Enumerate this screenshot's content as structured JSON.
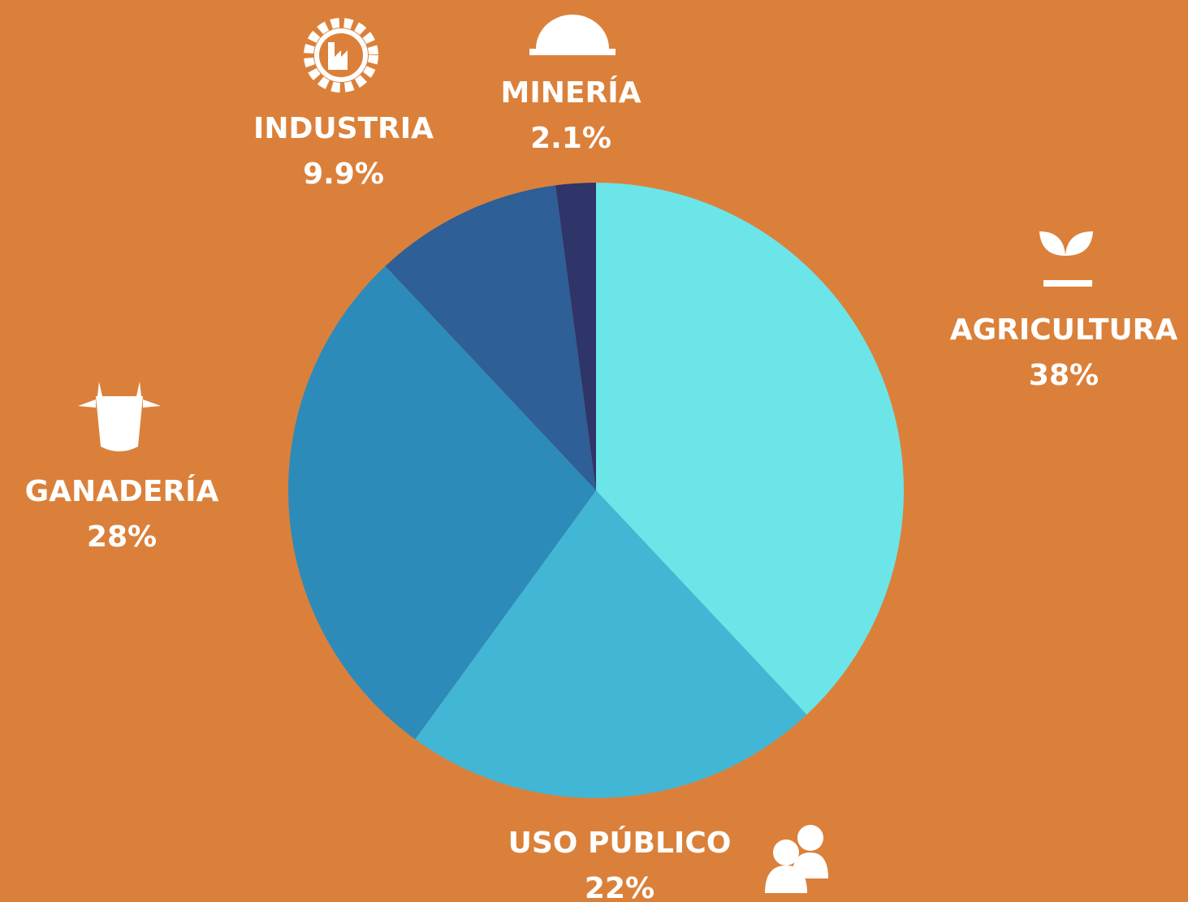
{
  "chart_data": {
    "type": "pie",
    "categories": [
      "AGRICULTURA",
      "USO PÚBLICO",
      "GANADERÍA",
      "INDUSTRIA",
      "MINERÍA"
    ],
    "values": [
      38,
      22,
      28,
      9.9,
      2.1
    ],
    "value_labels": [
      "38%",
      "22%",
      "28%",
      "9.9%",
      "2.1%"
    ],
    "colors": [
      "#6be5e8",
      "#42b6d5",
      "#2d8bba",
      "#2e5f96",
      "#2f3469"
    ]
  }
}
